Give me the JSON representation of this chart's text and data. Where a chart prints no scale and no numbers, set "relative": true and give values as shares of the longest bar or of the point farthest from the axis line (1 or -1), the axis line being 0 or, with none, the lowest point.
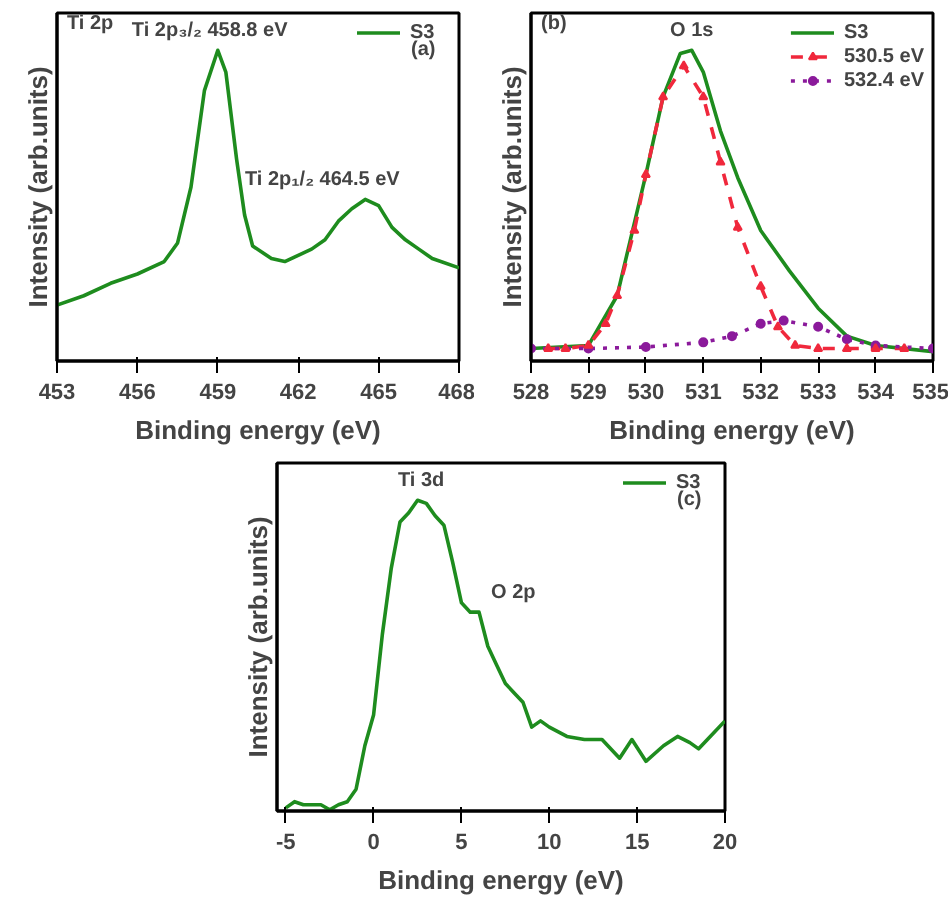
{
  "chart_data": [
    {
      "type": "line",
      "title": "Ti 2p",
      "subtitle": "(a)",
      "xlabel": "Binding energy (eV)",
      "ylabel": "Intensity (arb.units)",
      "relative": true,
      "xlim": [
        453,
        468
      ],
      "xticks": [
        453,
        456,
        459,
        462,
        465,
        468
      ],
      "legend": "top right",
      "grid": false,
      "annotations": [
        {
          "text": "Ti 2p₃/₂  458.8 eV",
          "x": 458.8,
          "y": 1.0
        },
        {
          "text": "Ti 2p₁/₂  464.5 eV",
          "x": 464.5,
          "y": 0.52
        }
      ],
      "series": [
        {
          "name": "S3",
          "color": "#1e8c1e",
          "x": [
            453,
            454,
            455,
            456,
            457,
            457.5,
            458,
            458.5,
            459,
            459.3,
            459.7,
            460,
            460.3,
            461,
            461.5,
            462,
            462.5,
            463,
            463.5,
            464,
            464.5,
            465,
            465.5,
            466,
            466.5,
            467,
            468
          ],
          "values": [
            0.18,
            0.21,
            0.25,
            0.28,
            0.32,
            0.38,
            0.56,
            0.87,
            1.0,
            0.93,
            0.65,
            0.47,
            0.37,
            0.33,
            0.32,
            0.34,
            0.36,
            0.39,
            0.45,
            0.49,
            0.52,
            0.5,
            0.43,
            0.39,
            0.36,
            0.33,
            0.3
          ],
          "line_style": "solid",
          "marker": "none"
        }
      ]
    },
    {
      "type": "line",
      "title": "(b)",
      "xlabel": "Binding energy (eV)",
      "ylabel": "Intensity (arb.units)",
      "relative": true,
      "xlim": [
        528,
        535
      ],
      "xticks": [
        528,
        529,
        530,
        531,
        532,
        533,
        534,
        535
      ],
      "legend": "top right",
      "grid": false,
      "annotations": [
        {
          "text": "O 1s",
          "x": 530.8,
          "y": 1.0
        }
      ],
      "series": [
        {
          "name": "S3",
          "color": "#1e8c1e",
          "x": [
            528,
            529,
            529.5,
            530,
            530.3,
            530.6,
            530.8,
            531,
            531.3,
            531.6,
            532,
            532.5,
            533,
            533.5,
            534,
            535
          ],
          "values": [
            0.04,
            0.05,
            0.21,
            0.6,
            0.85,
            0.99,
            1.0,
            0.93,
            0.74,
            0.59,
            0.42,
            0.29,
            0.17,
            0.08,
            0.05,
            0.03
          ],
          "line_style": "solid",
          "marker": "none"
        },
        {
          "name": "530.5 eV",
          "color": "#f0283c",
          "x": [
            528.3,
            528.6,
            529,
            529.3,
            529.5,
            529.8,
            530,
            530.3,
            530.66,
            531,
            531.3,
            531.6,
            532,
            532.3,
            532.6,
            533,
            533.5,
            534,
            534.5
          ],
          "values": [
            0.04,
            0.04,
            0.05,
            0.12,
            0.21,
            0.42,
            0.6,
            0.85,
            0.95,
            0.85,
            0.64,
            0.43,
            0.24,
            0.11,
            0.05,
            0.04,
            0.04,
            0.04,
            0.04
          ],
          "line_style": "dashed",
          "marker": "triangle"
        },
        {
          "name": "532.4 eV",
          "color": "#8b1a9b",
          "x": [
            528,
            529,
            530,
            531,
            531.5,
            532,
            532.4,
            533,
            533.5,
            534,
            535
          ],
          "values": [
            0.04,
            0.04,
            0.045,
            0.06,
            0.08,
            0.12,
            0.13,
            0.11,
            0.07,
            0.05,
            0.04
          ],
          "line_style": "dotted",
          "marker": "circle"
        }
      ]
    },
    {
      "type": "line",
      "subtitle": "(c)",
      "xlabel": "Binding energy (eV)",
      "ylabel": "Intensity (arb.units)",
      "relative": true,
      "xlim": [
        -5.5,
        20
      ],
      "xticks": [
        -5,
        0,
        5,
        10,
        15,
        20
      ],
      "legend": "top right",
      "grid": false,
      "annotations": [
        {
          "text": "Ti 3d",
          "x": 2.7,
          "y": 1.0
        },
        {
          "text": "O 2p",
          "x": 6,
          "y": 0.64
        }
      ],
      "series": [
        {
          "name": "S3",
          "color": "#1e8c1e",
          "x": [
            -5,
            -4.5,
            -4,
            -3.5,
            -3,
            -2.5,
            -2,
            -1.5,
            -1,
            -0.5,
            0,
            0.5,
            1,
            1.5,
            2,
            2.5,
            3,
            3.5,
            4,
            4.5,
            5,
            5.5,
            6,
            6.5,
            7,
            7.5,
            8,
            8.5,
            9,
            9.5,
            10,
            11,
            12,
            13,
            14,
            14.7,
            15.5,
            16.5,
            17.3,
            18,
            18.5,
            19,
            20
          ],
          "values": [
            0.01,
            0.03,
            0.02,
            0.02,
            0.02,
            0.004,
            0.02,
            0.03,
            0.07,
            0.21,
            0.31,
            0.57,
            0.78,
            0.93,
            0.96,
            1.0,
            0.99,
            0.95,
            0.92,
            0.8,
            0.67,
            0.64,
            0.64,
            0.53,
            0.47,
            0.41,
            0.38,
            0.35,
            0.27,
            0.29,
            0.27,
            0.24,
            0.23,
            0.23,
            0.17,
            0.23,
            0.16,
            0.21,
            0.24,
            0.22,
            0.2,
            0.23,
            0.29
          ],
          "line_style": "solid",
          "marker": "none"
        }
      ]
    }
  ]
}
